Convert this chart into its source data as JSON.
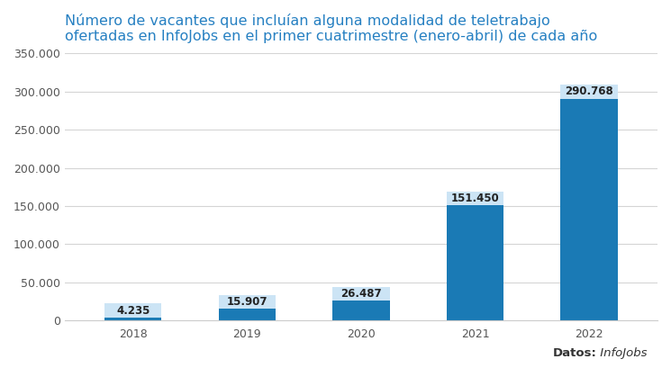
{
  "categories": [
    "2018",
    "2019",
    "2020",
    "2021",
    "2022"
  ],
  "values": [
    4235,
    15907,
    26487,
    151450,
    290768
  ],
  "labels": [
    "4.235",
    "15.907",
    "26.487",
    "151.450",
    "290.768"
  ],
  "bar_color": "#1a7ab5",
  "label_box_color": "#cce4f5",
  "title_line1": "Número de vacantes que incluían alguna modalidad de teletrabajo",
  "title_line2": "ofertadas en InfoJobs en el primer cuatrimestre (enero-abril) de cada año",
  "title_color": "#2680c2",
  "ylim": [
    0,
    350000
  ],
  "yticks": [
    0,
    50000,
    100000,
    150000,
    200000,
    250000,
    300000,
    350000
  ],
  "ytick_labels": [
    "0",
    "50.000",
    "100.000",
    "150.000",
    "200.000",
    "250.000",
    "300.000",
    "350.000"
  ],
  "background_color": "#ffffff",
  "footnote_bold": "Datos:",
  "footnote_italic": " InfoJobs",
  "grid_color": "#d5d5d5",
  "bar_width": 0.5,
  "label_fontsize": 8.5,
  "axis_fontsize": 9,
  "title_fontsize": 11.5
}
